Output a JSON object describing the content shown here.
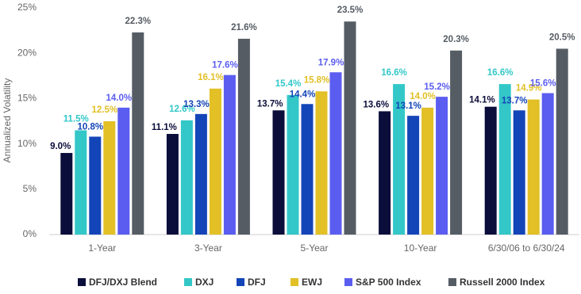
{
  "chart_data": {
    "type": "bar",
    "y_label": "Annualized Volatility",
    "categories": [
      "1-Year",
      "3-Year",
      "5-Year",
      "10-Year",
      "6/30/06 to 6/30/24"
    ],
    "series": [
      {
        "name": "DFJ/DXJ Blend",
        "color": "#0b0d3a",
        "values": [
          9.0,
          11.1,
          13.7,
          13.6,
          14.1
        ],
        "value_labels": [
          "9.0%",
          "11.1%",
          "13.7%",
          "13.6%",
          "14.1%"
        ]
      },
      {
        "name": "DXJ",
        "color": "#33c7c8",
        "values": [
          11.5,
          12.6,
          15.4,
          16.6,
          16.6
        ],
        "value_labels": [
          "11.5%",
          "12.6%",
          "15.4%",
          "16.6%",
          "16.6%"
        ]
      },
      {
        "name": "DFJ",
        "color": "#1445b8",
        "values": [
          10.8,
          13.3,
          14.4,
          13.1,
          13.7
        ],
        "value_labels": [
          "10.8%",
          "13.3%",
          "14.4%",
          "13.1%",
          "13.7%"
        ]
      },
      {
        "name": "EWJ",
        "color": "#e2c026",
        "values": [
          12.5,
          16.1,
          15.8,
          14.0,
          14.9
        ],
        "value_labels": [
          "12.5%",
          "16.1%",
          "15.8%",
          "14.0%",
          "14.9%"
        ]
      },
      {
        "name": "S&P 500 Index",
        "color": "#5b5df0",
        "values": [
          14.0,
          17.6,
          17.9,
          15.2,
          15.6
        ],
        "value_labels": [
          "14.0%",
          "17.6%",
          "17.9%",
          "15.2%",
          "15.6%"
        ]
      },
      {
        "name": "Russell 2000 Index",
        "color": "#555c64",
        "values": [
          22.3,
          21.6,
          23.5,
          20.3,
          20.5
        ],
        "value_labels": [
          "22.3%",
          "21.6%",
          "23.5%",
          "20.3%",
          "20.5%"
        ]
      }
    ],
    "ylim": [
      0,
      25
    ],
    "yticks": [
      {
        "value": 0,
        "label": "0%"
      },
      {
        "value": 5,
        "label": "5%"
      },
      {
        "value": 10,
        "label": "10%"
      },
      {
        "value": 15,
        "label": "15%"
      },
      {
        "value": 20,
        "label": "20%"
      },
      {
        "value": 25,
        "label": "25%"
      }
    ],
    "grid": false
  }
}
